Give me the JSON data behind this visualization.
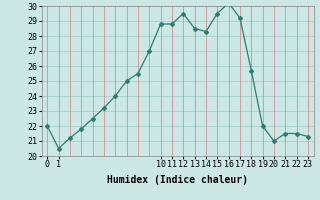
{
  "x": [
    0,
    1,
    2,
    3,
    4,
    5,
    6,
    7,
    8,
    9,
    10,
    11,
    12,
    13,
    14,
    15,
    16,
    17,
    18,
    19,
    20,
    21,
    22,
    23
  ],
  "y": [
    22.0,
    20.5,
    21.2,
    21.8,
    22.5,
    23.2,
    24.0,
    25.0,
    25.5,
    27.0,
    28.8,
    28.8,
    29.5,
    28.5,
    28.3,
    29.5,
    30.2,
    29.2,
    25.7,
    22.0,
    21.0,
    21.5,
    21.5,
    21.3
  ],
  "line_color": "#2e7d6e",
  "marker": "D",
  "marker_size": 2,
  "bg_color": "#cce8e4",
  "grid_color_h": "#a8d0cc",
  "grid_color_v": "#d08080",
  "xlabel": "Humidex (Indice chaleur)",
  "xlabel_fontsize": 7,
  "tick_fontsize": 6,
  "ylim": [
    20,
    30
  ],
  "xlim": [
    -0.5,
    23.5
  ],
  "yticks": [
    20,
    21,
    22,
    23,
    24,
    25,
    26,
    27,
    28,
    29,
    30
  ],
  "xticks_pos": [
    0,
    1,
    10,
    11,
    12,
    13,
    14,
    15,
    16,
    17,
    18,
    19,
    20,
    21,
    22,
    23
  ],
  "xtick_labels": [
    "0",
    "1",
    "10",
    "11",
    "12",
    "13",
    "14",
    "15",
    "16",
    "17",
    "18",
    "19",
    "20",
    "21",
    "22",
    "23"
  ],
  "vgrid_positions": [
    0,
    1,
    2,
    3,
    4,
    5,
    6,
    7,
    8,
    9,
    10,
    11,
    12,
    13,
    14,
    15,
    16,
    17,
    18,
    19,
    20,
    21,
    22,
    23
  ]
}
